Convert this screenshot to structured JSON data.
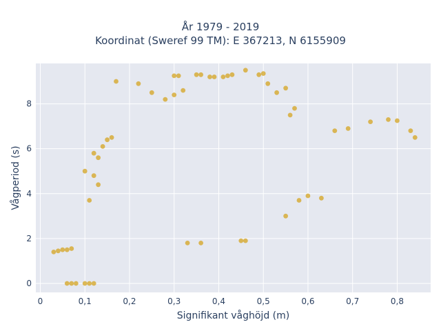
{
  "chart_data": {
    "type": "scatter",
    "title_lines": [
      "År 1979 - 2019",
      "Koordinat (Sweref 99 TM): E 367213, N 6155909"
    ],
    "xlabel": "Signifikant våghöjd (m)",
    "ylabel": "Vågperiod (s)",
    "xlim": [
      -0.01,
      0.875
    ],
    "ylim": [
      -0.4,
      9.8
    ],
    "x_ticks": [
      0,
      0.1,
      0.2,
      0.3,
      0.4,
      0.5,
      0.6,
      0.7,
      0.8
    ],
    "x_tick_labels": [
      "0",
      "0,1",
      "0,2",
      "0,3",
      "0,4",
      "0,5",
      "0,6",
      "0,7",
      "0,8"
    ],
    "y_ticks": [
      0,
      2,
      4,
      6,
      8
    ],
    "y_tick_labels": [
      "0",
      "2",
      "4",
      "6",
      "8"
    ],
    "grid": true,
    "marker_color": "#D4A420",
    "plot_bgcolor": "#E5E8F0",
    "series": [
      {
        "points": [
          [
            0.03,
            1.4
          ],
          [
            0.04,
            1.45
          ],
          [
            0.05,
            1.5
          ],
          [
            0.06,
            1.5
          ],
          [
            0.07,
            1.55
          ],
          [
            0.06,
            0.0
          ],
          [
            0.07,
            0.0
          ],
          [
            0.08,
            0.0
          ],
          [
            0.1,
            0.0
          ],
          [
            0.11,
            0.0
          ],
          [
            0.12,
            0.0
          ],
          [
            0.17,
            9.0
          ],
          [
            0.22,
            8.9
          ],
          [
            0.25,
            8.5
          ],
          [
            0.28,
            8.2
          ],
          [
            0.3,
            8.4
          ],
          [
            0.32,
            8.6
          ],
          [
            0.3,
            9.25
          ],
          [
            0.31,
            9.25
          ],
          [
            0.35,
            9.3
          ],
          [
            0.36,
            9.3
          ],
          [
            0.38,
            9.2
          ],
          [
            0.39,
            9.2
          ],
          [
            0.41,
            9.2
          ],
          [
            0.42,
            9.25
          ],
          [
            0.43,
            9.3
          ],
          [
            0.46,
            9.5
          ],
          [
            0.49,
            9.3
          ],
          [
            0.5,
            9.35
          ],
          [
            0.51,
            8.9
          ],
          [
            0.53,
            8.5
          ],
          [
            0.55,
            8.7
          ],
          [
            0.57,
            7.8
          ],
          [
            0.56,
            7.5
          ],
          [
            0.45,
            1.9
          ],
          [
            0.46,
            1.9
          ],
          [
            0.33,
            1.8
          ],
          [
            0.36,
            1.8
          ],
          [
            0.12,
            5.8
          ],
          [
            0.13,
            5.6
          ],
          [
            0.1,
            5.0
          ],
          [
            0.12,
            4.8
          ],
          [
            0.13,
            4.4
          ],
          [
            0.11,
            3.7
          ],
          [
            0.14,
            6.1
          ],
          [
            0.16,
            6.5
          ],
          [
            0.15,
            6.4
          ],
          [
            0.55,
            3.0
          ],
          [
            0.58,
            3.7
          ],
          [
            0.6,
            3.9
          ],
          [
            0.63,
            3.8
          ],
          [
            0.66,
            6.8
          ],
          [
            0.69,
            6.9
          ],
          [
            0.74,
            7.2
          ],
          [
            0.78,
            7.3
          ],
          [
            0.8,
            7.25
          ],
          [
            0.83,
            6.8
          ],
          [
            0.84,
            6.5
          ]
        ]
      }
    ]
  }
}
